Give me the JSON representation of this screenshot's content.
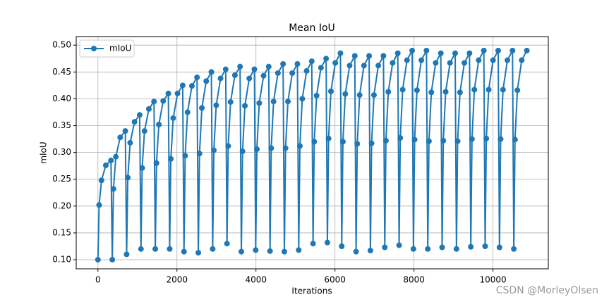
{
  "chart_data": {
    "type": "line",
    "title": "Mean IoU",
    "xlabel": "Iterations",
    "ylabel": "mIoU",
    "watermark": "CSDN @MorleyOlsen",
    "legend": "upper left",
    "grid": true,
    "xlim": [
      -550,
      11400
    ],
    "ylim": [
      0.083,
      0.516
    ],
    "xticks": [
      0,
      2000,
      4000,
      6000,
      8000,
      10000
    ],
    "yticks": [
      {
        "value": 0.1,
        "label": "0.10"
      },
      {
        "value": 0.15,
        "label": "0.15"
      },
      {
        "value": 0.2,
        "label": "0.20"
      },
      {
        "value": 0.25,
        "label": "0.25"
      },
      {
        "value": 0.3,
        "label": "0.30"
      },
      {
        "value": 0.35,
        "label": "0.35"
      },
      {
        "value": 0.4,
        "label": "0.40"
      },
      {
        "value": 0.45,
        "label": "0.45"
      },
      {
        "value": 0.5,
        "label": "0.50"
      }
    ],
    "x": [
      0,
      30,
      90,
      200,
      330,
      363,
      393,
      453,
      563,
      693,
      726,
      756,
      816,
      926,
      1056,
      1089,
      1119,
      1179,
      1289,
      1419,
      1452,
      1482,
      1542,
      1652,
      1782,
      1815,
      1845,
      1905,
      2015,
      2145,
      2178,
      2208,
      2268,
      2378,
      2508,
      2541,
      2571,
      2631,
      2741,
      2871,
      2904,
      2934,
      2994,
      3104,
      3234,
      3267,
      3297,
      3357,
      3467,
      3597,
      3630,
      3660,
      3720,
      3830,
      3960,
      3993,
      4023,
      4083,
      4193,
      4323,
      4356,
      4386,
      4446,
      4556,
      4686,
      4719,
      4749,
      4809,
      4919,
      5049,
      5082,
      5112,
      5172,
      5282,
      5412,
      5445,
      5475,
      5535,
      5645,
      5775,
      5808,
      5838,
      5898,
      6008,
      6138,
      6171,
      6201,
      6261,
      6371,
      6501,
      6534,
      6564,
      6624,
      6734,
      6864,
      6897,
      6927,
      6987,
      7097,
      7227,
      7260,
      7290,
      7350,
      7460,
      7590,
      7623,
      7653,
      7713,
      7823,
      7953,
      7986,
      8016,
      8076,
      8186,
      8316,
      8349,
      8379,
      8439,
      8549,
      8679,
      8712,
      8742,
      8802,
      8912,
      9042,
      9075,
      9105,
      9165,
      9275,
      9405,
      9438,
      9468,
      9528,
      9638,
      9768,
      9801,
      9831,
      9891,
      10001,
      10131,
      10164,
      10194,
      10254,
      10364,
      10494,
      10527,
      10557,
      10617,
      10727,
      10857
    ],
    "series": [
      {
        "name": "mIoU",
        "color": "#1f77b4",
        "values": [
          0.1,
          0.202,
          0.248,
          0.276,
          0.285,
          0.1,
          0.232,
          0.292,
          0.328,
          0.34,
          0.11,
          0.253,
          0.318,
          0.357,
          0.37,
          0.12,
          0.271,
          0.34,
          0.381,
          0.395,
          0.12,
          0.28,
          0.352,
          0.396,
          0.41,
          0.12,
          0.288,
          0.364,
          0.41,
          0.425,
          0.115,
          0.294,
          0.375,
          0.424,
          0.44,
          0.113,
          0.298,
          0.383,
          0.433,
          0.45,
          0.12,
          0.304,
          0.388,
          0.438,
          0.455,
          0.13,
          0.312,
          0.394,
          0.444,
          0.46,
          0.115,
          0.302,
          0.387,
          0.438,
          0.455,
          0.118,
          0.306,
          0.392,
          0.443,
          0.46,
          0.116,
          0.308,
          0.395,
          0.448,
          0.465,
          0.115,
          0.308,
          0.395,
          0.448,
          0.465,
          0.118,
          0.312,
          0.4,
          0.452,
          0.47,
          0.13,
          0.32,
          0.406,
          0.458,
          0.475,
          0.132,
          0.326,
          0.414,
          0.467,
          0.485,
          0.125,
          0.32,
          0.409,
          0.462,
          0.48,
          0.115,
          0.316,
          0.407,
          0.462,
          0.48,
          0.117,
          0.317,
          0.407,
          0.462,
          0.48,
          0.123,
          0.322,
          0.413,
          0.467,
          0.485,
          0.127,
          0.327,
          0.417,
          0.472,
          0.49,
          0.12,
          0.324,
          0.416,
          0.472,
          0.49,
          0.12,
          0.321,
          0.412,
          0.467,
          0.485,
          0.123,
          0.322,
          0.413,
          0.467,
          0.485,
          0.12,
          0.321,
          0.412,
          0.467,
          0.485,
          0.124,
          0.325,
          0.417,
          0.472,
          0.49,
          0.125,
          0.326,
          0.417,
          0.472,
          0.49,
          0.123,
          0.325,
          0.417,
          0.472,
          0.49,
          0.12,
          0.324,
          0.416,
          0.472,
          0.49
        ]
      }
    ]
  }
}
